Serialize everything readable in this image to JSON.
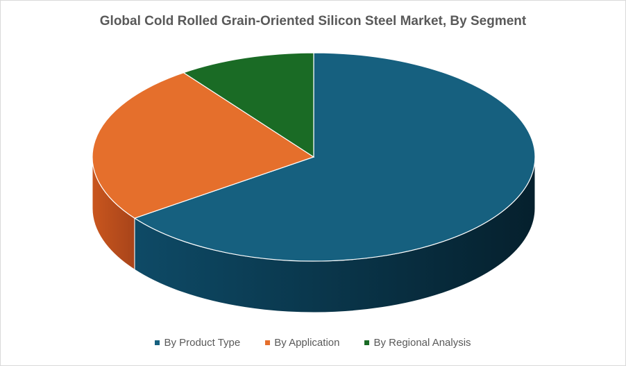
{
  "chart_data": {
    "type": "pie",
    "title": "Global Cold Rolled Grain-Oriented Silicon Steel Market, By Segment",
    "categories": [
      "By Product Type",
      "By Application",
      "By Regional Analysis"
    ],
    "values": [
      65,
      25,
      10
    ],
    "colors": [
      "#16607f",
      "#e56f2c",
      "#1a6b25"
    ],
    "legend_position": "bottom",
    "style": "3d-pie"
  }
}
